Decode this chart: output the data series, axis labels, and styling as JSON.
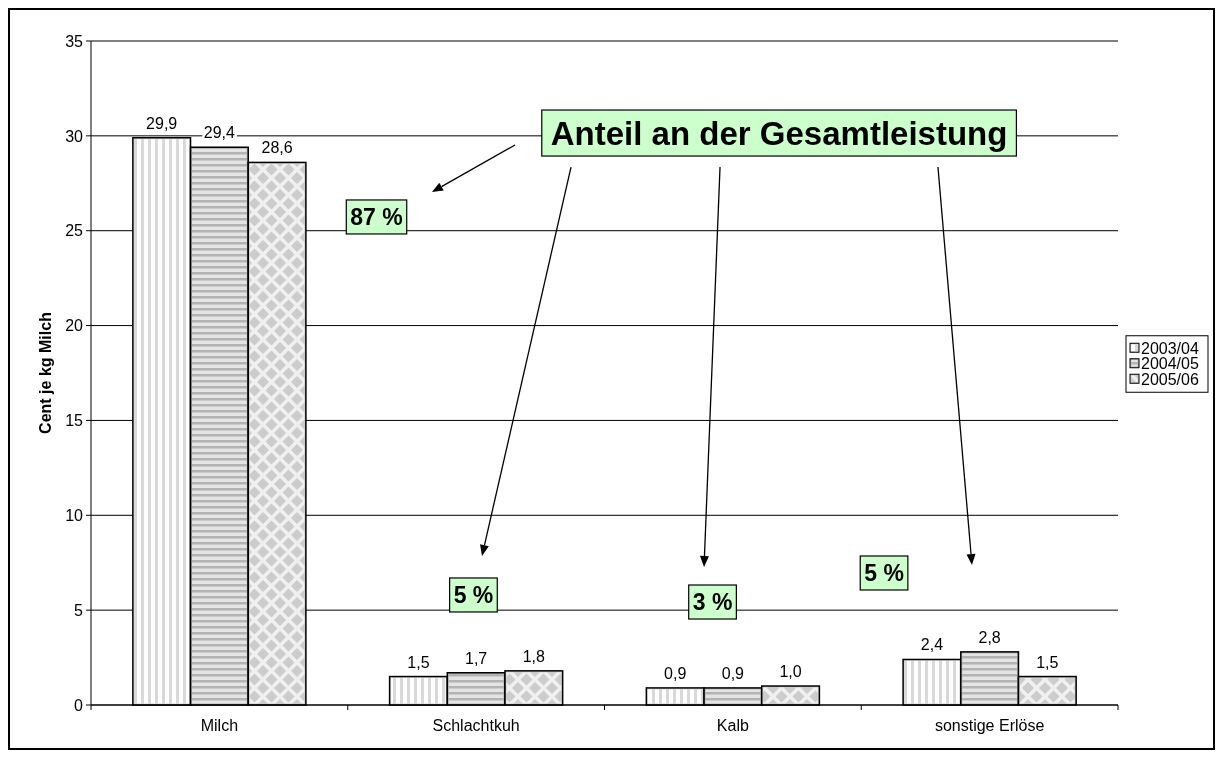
{
  "chart_data": {
    "type": "bar",
    "ylabel": "Cent je kg Milch",
    "categories": [
      "Milch",
      "Schlachtkuh",
      "Kalb",
      "sonstige Erlöse"
    ],
    "series": [
      {
        "name": "2003/04",
        "color": "#d9d9d9",
        "values": [
          29.9,
          1.5,
          0.9,
          2.4
        ],
        "value_labels": [
          "29,9",
          "1,5",
          "0,9",
          "2,4"
        ]
      },
      {
        "name": "2004/05",
        "color": "#b3b3b3",
        "values": [
          29.4,
          1.7,
          0.9,
          2.8
        ],
        "value_labels": [
          "29,4",
          "1,7",
          "0,9",
          "2,8"
        ]
      },
      {
        "name": "2005/06",
        "color": "#cccccc",
        "values": [
          28.6,
          1.8,
          1.0,
          1.5
        ],
        "value_labels": [
          "28,6",
          "1,8",
          "1,0",
          "1,5"
        ]
      }
    ],
    "ylim": [
      0,
      35
    ],
    "yticks": [
      0,
      5,
      10,
      15,
      20,
      25,
      30,
      35
    ],
    "grid": "y",
    "legend": "right",
    "annotations": [
      "Anteil an der Gesamtleistung",
      "87 %",
      "5 %",
      "3 %",
      "5 %"
    ]
  }
}
